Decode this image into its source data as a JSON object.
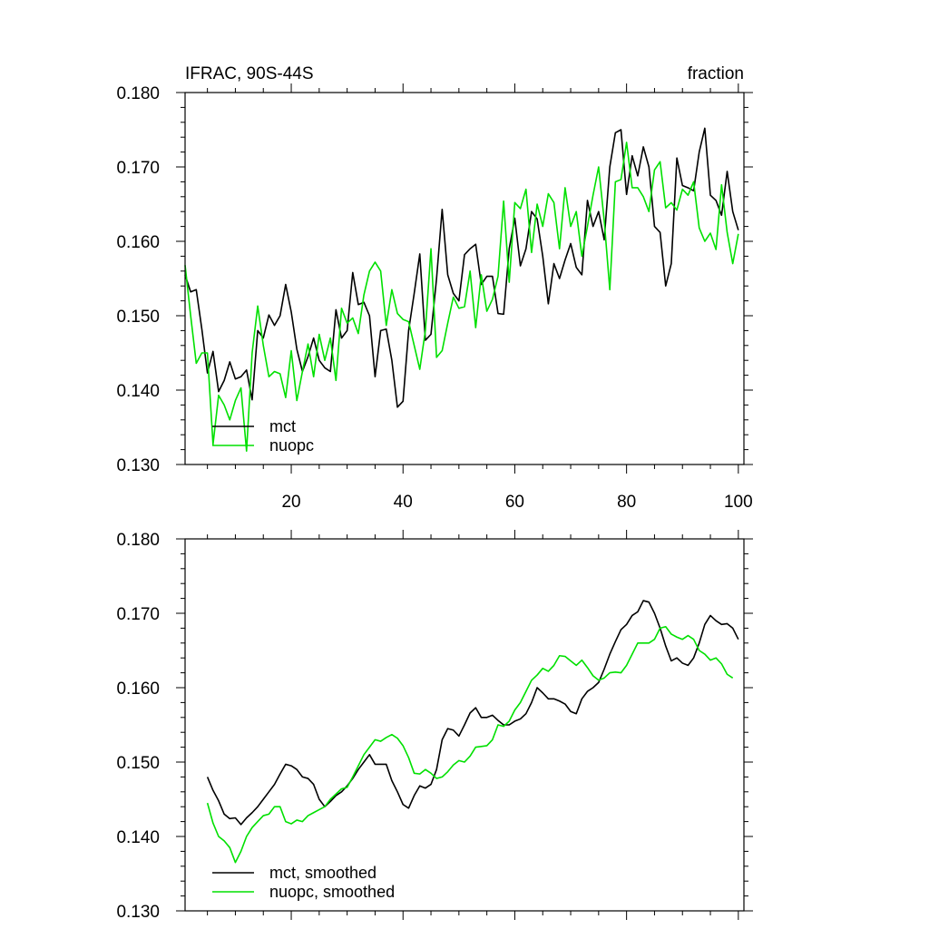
{
  "colors": {
    "mct": "#000000",
    "nuopc": "#00e000"
  },
  "chart_data": [
    {
      "type": "line",
      "title": "IFRAC, 90S-44S",
      "units": "fraction",
      "xlim": [
        1,
        101
      ],
      "ylim": [
        0.13,
        0.18
      ],
      "xticks": [
        20,
        40,
        60,
        80,
        100
      ],
      "yticks": [
        0.13,
        0.14,
        0.15,
        0.16,
        0.17,
        0.18
      ],
      "ytick_labels": [
        "0.130",
        "0.140",
        "0.150",
        "0.160",
        "0.170",
        "0.180"
      ],
      "xtick_labels": [
        "20",
        "40",
        "60",
        "80",
        "100"
      ],
      "legend": {
        "position": "bottom-left",
        "entries": [
          "mct",
          "nuopc"
        ]
      },
      "series": [
        {
          "name": "mct",
          "x_start": 1,
          "values": [
            0.1555,
            0.1532,
            0.1535,
            0.1482,
            0.1423,
            0.1452,
            0.1398,
            0.1413,
            0.1438,
            0.1415,
            0.1418,
            0.1427,
            0.1387,
            0.148,
            0.147,
            0.1501,
            0.1487,
            0.15,
            0.1542,
            0.1505,
            0.1455,
            0.1425,
            0.1445,
            0.147,
            0.144,
            0.143,
            0.1425,
            0.1508,
            0.147,
            0.148,
            0.1558,
            0.1515,
            0.1518,
            0.15,
            0.1418,
            0.148,
            0.1482,
            0.144,
            0.1377,
            0.1385,
            0.148,
            0.153,
            0.1583,
            0.1467,
            0.1475,
            0.155,
            0.1643,
            0.1555,
            0.153,
            0.152,
            0.1582,
            0.159,
            0.1596,
            0.1542,
            0.1553,
            0.1553,
            0.1503,
            0.1502,
            0.159,
            0.1631,
            0.1567,
            0.159,
            0.164,
            0.163,
            0.158,
            0.1516,
            0.157,
            0.155,
            0.1575,
            0.1597,
            0.1565,
            0.1555,
            0.1655,
            0.162,
            0.164,
            0.1602,
            0.17,
            0.1746,
            0.175,
            0.1663,
            0.1715,
            0.1688,
            0.1727,
            0.17,
            0.162,
            0.1612,
            0.154,
            0.157,
            0.1712,
            0.1675,
            0.1672,
            0.1668,
            0.172,
            0.1752,
            0.1662,
            0.1655,
            0.1635,
            0.1694,
            0.164,
            0.1615
          ]
        },
        {
          "name": "nuopc",
          "x_start": 1,
          "values": [
            0.1568,
            0.15,
            0.1436,
            0.145,
            0.145,
            0.1327,
            0.1393,
            0.138,
            0.136,
            0.1386,
            0.1403,
            0.1318,
            0.145,
            0.1513,
            0.146,
            0.1418,
            0.1425,
            0.1422,
            0.139,
            0.1453,
            0.1386,
            0.1425,
            0.1462,
            0.1418,
            0.1475,
            0.144,
            0.147,
            0.1413,
            0.151,
            0.149,
            0.1497,
            0.1476,
            0.1528,
            0.156,
            0.1572,
            0.156,
            0.1487,
            0.1535,
            0.1503,
            0.1495,
            0.1492,
            0.146,
            0.1428,
            0.148,
            0.159,
            0.1444,
            0.1453,
            0.149,
            0.1525,
            0.151,
            0.1512,
            0.156,
            0.1484,
            0.1555,
            0.1506,
            0.1522,
            0.1553,
            0.1654,
            0.1545,
            0.1652,
            0.1644,
            0.167,
            0.1585,
            0.165,
            0.162,
            0.1664,
            0.1652,
            0.159,
            0.1672,
            0.162,
            0.164,
            0.158,
            0.162,
            0.1662,
            0.17,
            0.1628,
            0.1535,
            0.168,
            0.1683,
            0.1733,
            0.1672,
            0.1672,
            0.166,
            0.164,
            0.1696,
            0.1707,
            0.1645,
            0.1652,
            0.1642,
            0.167,
            0.1662,
            0.168,
            0.1618,
            0.16,
            0.1611,
            0.1589,
            0.1676,
            0.1612,
            0.157,
            0.161
          ]
        }
      ]
    },
    {
      "type": "line",
      "xlim": [
        1,
        101
      ],
      "ylim": [
        0.13,
        0.18
      ],
      "yticks": [
        0.13,
        0.14,
        0.15,
        0.16,
        0.17,
        0.18
      ],
      "ytick_labels": [
        "0.130",
        "0.140",
        "0.150",
        "0.160",
        "0.170",
        "0.180"
      ],
      "legend": {
        "position": "bottom-left",
        "entries": [
          "mct, smoothed",
          "nuopc, smoothed"
        ]
      },
      "series": [
        {
          "name": "mct, smoothed",
          "x_start": 5,
          "values": [
            0.148,
            0.1462,
            0.1448,
            0.143,
            0.1424,
            0.1425,
            0.1416,
            0.1425,
            0.1432,
            0.144,
            0.145,
            0.146,
            0.147,
            0.1484,
            0.1497,
            0.1495,
            0.149,
            0.148,
            0.1478,
            0.147,
            0.145,
            0.144,
            0.1447,
            0.1455,
            0.146,
            0.1468,
            0.1478,
            0.149,
            0.15,
            0.151,
            0.1497,
            0.1497,
            0.1497,
            0.1475,
            0.146,
            0.1443,
            0.1438,
            0.1455,
            0.1468,
            0.1465,
            0.147,
            0.149,
            0.153,
            0.1545,
            0.1543,
            0.1535,
            0.155,
            0.1566,
            0.1573,
            0.156,
            0.156,
            0.1563,
            0.1556,
            0.155,
            0.155,
            0.1555,
            0.1558,
            0.1565,
            0.158,
            0.16,
            0.1593,
            0.1585,
            0.1585,
            0.1582,
            0.1578,
            0.1568,
            0.1565,
            0.1585,
            0.1595,
            0.16,
            0.1607,
            0.1625,
            0.1645,
            0.1662,
            0.1678,
            0.1685,
            0.1697,
            0.1702,
            0.1717,
            0.1715,
            0.17,
            0.168,
            0.1656,
            0.1636,
            0.164,
            0.1633,
            0.163,
            0.164,
            0.166,
            0.1685,
            0.1697,
            0.169,
            0.1685,
            0.1686,
            0.168,
            0.1665
          ]
        },
        {
          "name": "nuopc, smoothed",
          "x_start": 5,
          "values": [
            0.1445,
            0.1418,
            0.14,
            0.1394,
            0.1385,
            0.1365,
            0.138,
            0.14,
            0.1412,
            0.142,
            0.1428,
            0.143,
            0.144,
            0.144,
            0.142,
            0.1417,
            0.1422,
            0.142,
            0.1428,
            0.1432,
            0.1436,
            0.144,
            0.145,
            0.1457,
            0.1464,
            0.1466,
            0.148,
            0.1495,
            0.151,
            0.152,
            0.153,
            0.1528,
            0.1533,
            0.1537,
            0.1532,
            0.1522,
            0.1506,
            0.1485,
            0.1484,
            0.149,
            0.1485,
            0.1478,
            0.148,
            0.1487,
            0.1496,
            0.1502,
            0.15,
            0.1508,
            0.152,
            0.1521,
            0.1522,
            0.153,
            0.155,
            0.1548,
            0.1555,
            0.157,
            0.158,
            0.1595,
            0.161,
            0.1617,
            0.1626,
            0.1622,
            0.163,
            0.1643,
            0.1642,
            0.1636,
            0.163,
            0.1637,
            0.1627,
            0.1616,
            0.161,
            0.1613,
            0.162,
            0.1621,
            0.162,
            0.163,
            0.1645,
            0.166,
            0.166,
            0.166,
            0.1665,
            0.168,
            0.1682,
            0.1672,
            0.1668,
            0.1665,
            0.167,
            0.1665,
            0.165,
            0.1645,
            0.1637,
            0.164,
            0.1632,
            0.1618,
            0.1613
          ]
        }
      ]
    }
  ]
}
